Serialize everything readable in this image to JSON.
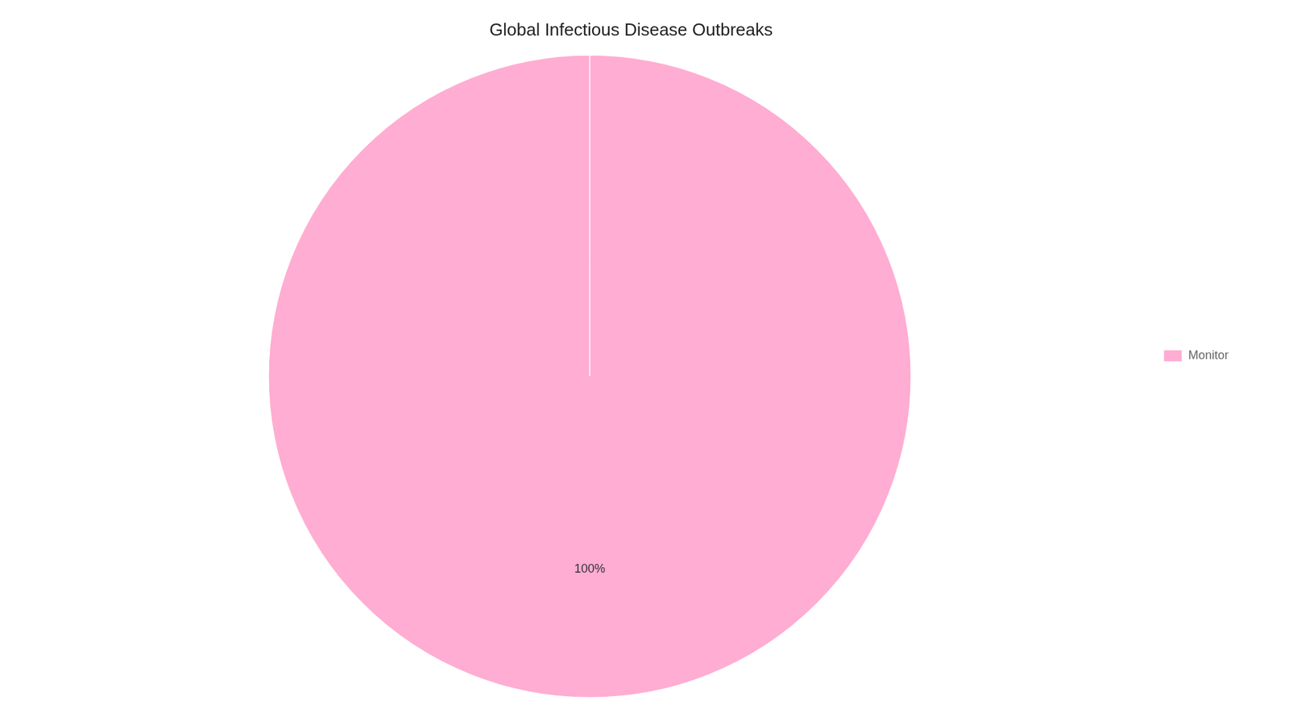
{
  "chart_data": {
    "type": "pie",
    "title": "Global Infectious Disease Outbreaks",
    "categories": [
      "Monitor"
    ],
    "values": [
      100
    ],
    "value_labels": [
      "100%"
    ],
    "colors": [
      "#ffadd2"
    ],
    "data_labels": true,
    "legend": "right"
  }
}
